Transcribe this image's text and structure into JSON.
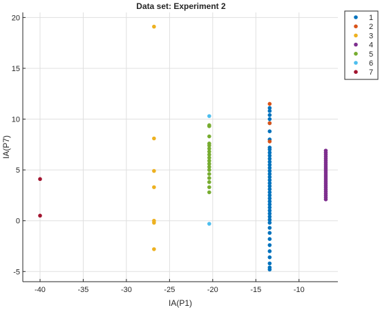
{
  "chart_data": {
    "type": "scatter",
    "title": "Data set: Experiment 2",
    "xlabel": "IA(P1)",
    "ylabel": "IA(P7)",
    "xlim": [
      -42,
      -5.5
    ],
    "ylim": [
      -6,
      20.5
    ],
    "xticks": [
      -40,
      -35,
      -30,
      -25,
      -20,
      -15,
      -10
    ],
    "yticks": [
      -5,
      0,
      5,
      10,
      15,
      20
    ],
    "grid": true,
    "legend_position": "outside-top-right",
    "series": [
      {
        "name": "1",
        "color": "#0072BD",
        "x": -13.4,
        "y": [
          -4.8,
          -4.6,
          -4.2,
          -3.6,
          -3.0,
          -2.4,
          -1.8,
          -1.2,
          -0.7,
          -0.2,
          0.1,
          0.4,
          0.7,
          1.0,
          1.3,
          1.6,
          1.9,
          2.2,
          2.5,
          2.8,
          3.1,
          3.4,
          3.7,
          4.0,
          4.3,
          4.6,
          4.9,
          5.2,
          5.5,
          5.8,
          6.1,
          6.4,
          6.7,
          7.0,
          7.2,
          8.0,
          8.8,
          9.6,
          10.0,
          10.4,
          10.8,
          11.1
        ]
      },
      {
        "name": "2",
        "color": "#D95319",
        "x": -13.4,
        "y": [
          11.5,
          9.6,
          7.8
        ]
      },
      {
        "name": "3",
        "color": "#EDB120",
        "x": -26.8,
        "y": [
          19.1,
          8.1,
          4.9,
          3.3,
          0.0,
          -0.2,
          -2.8
        ]
      },
      {
        "name": "4",
        "color": "#7E2F8E",
        "x": -6.9,
        "y": [
          2.1,
          2.3,
          2.5,
          2.7,
          2.9,
          3.1,
          3.3,
          3.5,
          3.7,
          3.9,
          4.1,
          4.3,
          4.5,
          4.7,
          4.9,
          5.1,
          5.3,
          5.5,
          5.7,
          5.9,
          6.1,
          6.3,
          6.5,
          6.7,
          6.9
        ]
      },
      {
        "name": "5",
        "color": "#77AC30",
        "x": -20.4,
        "y": [
          2.8,
          3.3,
          3.8,
          4.2,
          4.6,
          5.0,
          5.3,
          5.6,
          5.9,
          6.2,
          6.5,
          6.8,
          7.1,
          7.4,
          7.6,
          8.3,
          9.3,
          9.4
        ]
      },
      {
        "name": "6",
        "color": "#4DBEEE",
        "x": -20.4,
        "y": [
          10.3,
          -0.3
        ]
      },
      {
        "name": "7",
        "color": "#A2142F",
        "x": -40.0,
        "y": [
          4.1,
          0.5
        ]
      }
    ]
  }
}
